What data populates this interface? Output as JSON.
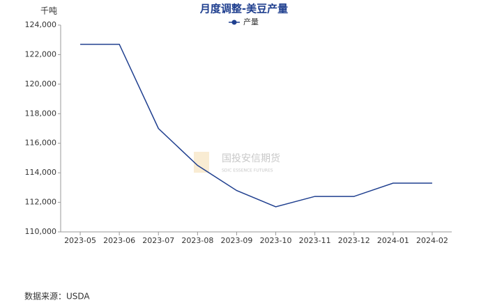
{
  "chart_data": {
    "type": "line",
    "title": "月度调整-美豆产量",
    "y_unit": "千吨",
    "source": "数据来源：USDA",
    "watermark": "国投安信期货",
    "watermark_sub": "SDIC ESSENCE FUTURES",
    "categories": [
      "2023-05",
      "2023-06",
      "2023-07",
      "2023-08",
      "2023-09",
      "2023-10",
      "2023-11",
      "2023-12",
      "2024-01",
      "2024-02"
    ],
    "series": [
      {
        "name": "产量",
        "color": "#1f3f8f",
        "values": [
          122700,
          122700,
          117000,
          114500,
          112800,
          111700,
          112400,
          112400,
          113300,
          113300
        ]
      }
    ],
    "ylim": [
      110000,
      124000
    ],
    "yticks": [
      {
        "value": 110000,
        "label": "110,000"
      },
      {
        "value": 112000,
        "label": "112,000"
      },
      {
        "value": 114000,
        "label": "114,000"
      },
      {
        "value": 116000,
        "label": "116,000"
      },
      {
        "value": 118000,
        "label": "118,000"
      },
      {
        "value": 120000,
        "label": "120,000"
      },
      {
        "value": 122000,
        "label": "122,000"
      },
      {
        "value": 124000,
        "label": "124,000"
      }
    ],
    "grid": false
  }
}
